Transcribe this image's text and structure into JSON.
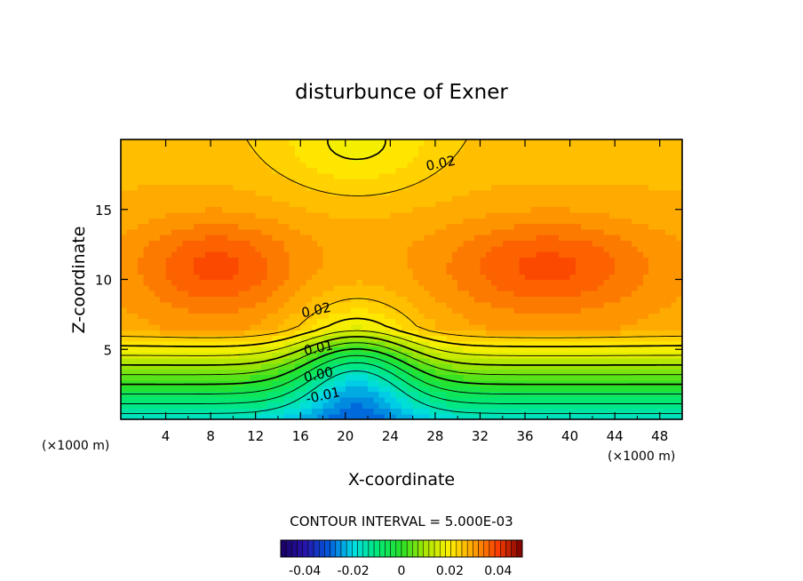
{
  "chart_data": {
    "type": "heatmap",
    "title": "disturbunce of Exner",
    "xlabel": "X-coordinate",
    "ylabel": "Z-coordinate",
    "x_unit_left": "(×1000 m)",
    "x_unit_right": "(×1000 m)",
    "xlim": [
      0,
      50
    ],
    "ylim": [
      0,
      20
    ],
    "x_ticks": [
      4,
      8,
      12,
      16,
      20,
      24,
      28,
      32,
      36,
      40,
      44,
      48
    ],
    "y_ticks": [
      5,
      10,
      15
    ],
    "contour_interval_text": "CONTOUR INTERVAL = 5.000E-03",
    "contour_labels": [
      {
        "text": "0.02",
        "x": 28.5,
        "z": 18.3
      },
      {
        "text": "0.02",
        "x": 17.4,
        "z": 7.8
      },
      {
        "text": "0.01",
        "x": 17.6,
        "z": 5.1
      },
      {
        "text": "0.00",
        "x": 17.6,
        "z": 3.2
      },
      {
        "text": "-0.01",
        "x": 18.0,
        "z": 1.7
      }
    ],
    "contour_levels": [
      -0.015,
      -0.01,
      -0.005,
      0.0,
      0.005,
      0.01,
      0.015,
      0.02,
      0.025
    ],
    "major_contour_levels": [
      0.0,
      0.01,
      0.02
    ],
    "field_range": [
      -0.02,
      0.03
    ],
    "field_extrema": [
      {
        "kind": "max",
        "x": 8.5,
        "z": 10.9,
        "value": 0.03
      },
      {
        "kind": "max",
        "x": 38,
        "z": 10.9,
        "value": 0.03
      },
      {
        "kind": "min",
        "x": 21,
        "z": 0.3,
        "value": -0.02
      }
    ],
    "colorbar": {
      "range": [
        -0.05,
        0.05
      ],
      "tick_labels": [
        "-0.04",
        "-0.02",
        "0",
        "0.02",
        "0.04"
      ],
      "tick_values": [
        -0.04,
        -0.02,
        0,
        0.02,
        0.04
      ]
    }
  }
}
